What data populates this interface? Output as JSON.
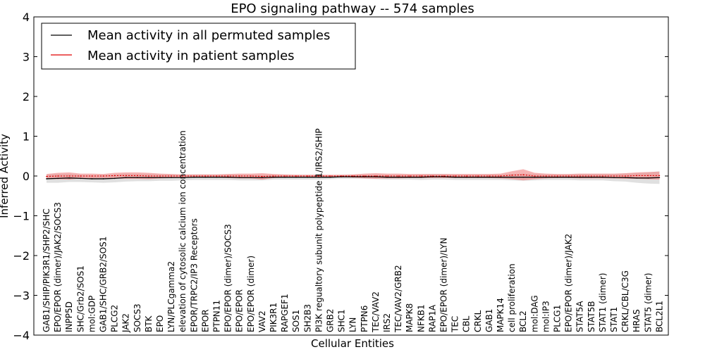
{
  "chart_data": {
    "type": "line",
    "title": "EPO signaling pathway -- 574 samples",
    "xlabel": "Cellular Entities",
    "ylabel": "Inferred Activity",
    "ylim": [
      -4,
      4
    ],
    "yticks": [
      "−4",
      "−3",
      "−2",
      "−1",
      "0",
      "1",
      "2",
      "3",
      "4"
    ],
    "grid": false,
    "legend_position": "top-left",
    "categories": [
      "GAB1/SHIP/PIK3R1/SHP2/SHC",
      "EPO/EPOR (dimer)/JAK2/SOCS3",
      "INPP5D",
      "SHC/Grb2/SOS1",
      "mol:GDP",
      "GAB1/SHC/GRB2/SOS1",
      "PLCG2",
      "JAK2",
      "SOCS3",
      "BTK",
      "EPO",
      "LYN/PLCgamma2",
      "elevation of cytosolic calcium ion concentration",
      "EPOR/TRPC2/IP3 Receptors",
      "EPOR",
      "PTPN11",
      "EPO/EPOR (dimer)/SOCS3",
      "EPO/EPOR",
      "EPO/EPOR (dimer)",
      "VAV2",
      "PIK3R1",
      "RAPGEF1",
      "SOS1",
      "SH2B3",
      "PI3K regualtory subunit polypeptide 1/IRS2/SHIP",
      "GRB2",
      "SHC1",
      "LYN",
      "PTPN6",
      "TEC/VAV2",
      "IRS2",
      "TEC/VAV2/GRB2",
      "MAPK8",
      "NFKB1",
      "RAP1A",
      "EPO/EPOR (dimer)/LYN",
      "TEC",
      "CBL",
      "CRKL",
      "GAB1",
      "MAPK14",
      "cell proliferation",
      "BCL2",
      "mol:DAG",
      "mol:IP3",
      "PLCG1",
      "EPO/EPOR (dimer)/JAK2",
      "STAT5A",
      "STAT5B",
      "STAT1 (dimer)",
      "STAT1",
      "CRKL/CBL/C3G",
      "HRAS",
      "STAT5 (dimer)",
      "BCL2L1"
    ],
    "series": [
      {
        "name": "Mean activity in all permuted samples",
        "color": "#000000",
        "band_color": "#bbbbbb",
        "values": [
          -0.07,
          -0.06,
          -0.05,
          -0.06,
          -0.07,
          -0.07,
          -0.06,
          -0.04,
          -0.04,
          -0.04,
          -0.04,
          -0.04,
          -0.04,
          -0.03,
          -0.03,
          -0.03,
          -0.03,
          -0.04,
          -0.04,
          -0.04,
          -0.03,
          -0.03,
          -0.03,
          -0.03,
          -0.03,
          -0.03,
          -0.02,
          -0.02,
          -0.02,
          -0.02,
          -0.03,
          -0.03,
          -0.03,
          -0.03,
          -0.02,
          -0.02,
          -0.03,
          -0.03,
          -0.03,
          -0.03,
          -0.03,
          -0.03,
          -0.03,
          -0.03,
          -0.03,
          -0.03,
          -0.03,
          -0.03,
          -0.03,
          -0.03,
          -0.04,
          -0.04,
          -0.05,
          -0.05,
          -0.04
        ],
        "band": [
          0.1,
          0.11,
          0.1,
          0.09,
          0.09,
          0.1,
          0.1,
          0.1,
          0.09,
          0.09,
          0.08,
          0.08,
          0.07,
          0.07,
          0.07,
          0.07,
          0.07,
          0.07,
          0.07,
          0.07,
          0.06,
          0.06,
          0.06,
          0.06,
          0.06,
          0.05,
          0.05,
          0.05,
          0.05,
          0.06,
          0.06,
          0.06,
          0.06,
          0.07,
          0.07,
          0.07,
          0.07,
          0.07,
          0.07,
          0.07,
          0.07,
          0.08,
          0.09,
          0.08,
          0.07,
          0.07,
          0.07,
          0.08,
          0.08,
          0.08,
          0.09,
          0.1,
          0.12,
          0.14,
          0.16
        ]
      },
      {
        "name": "Mean activity in patient samples",
        "color": "#e00000",
        "band_color": "#f08080",
        "values": [
          -0.01,
          0.0,
          0.0,
          0.0,
          0.0,
          0.0,
          0.01,
          0.01,
          0.01,
          0.0,
          0.0,
          0.0,
          0.0,
          0.0,
          0.0,
          0.0,
          0.0,
          0.0,
          0.0,
          -0.01,
          0.0,
          0.0,
          0.0,
          0.0,
          0.0,
          0.0,
          0.0,
          0.0,
          0.0,
          0.0,
          0.0,
          0.0,
          0.0,
          0.0,
          0.0,
          0.0,
          0.0,
          0.0,
          0.0,
          0.0,
          0.0,
          0.02,
          0.03,
          0.0,
          0.0,
          0.0,
          0.0,
          0.0,
          0.0,
          0.0,
          0.0,
          0.0,
          0.01,
          0.01,
          0.01
        ],
        "band": [
          0.06,
          0.08,
          0.09,
          0.06,
          0.06,
          0.05,
          0.07,
          0.08,
          0.08,
          0.08,
          0.06,
          0.05,
          0.04,
          0.04,
          0.04,
          0.04,
          0.05,
          0.06,
          0.06,
          0.08,
          0.05,
          0.04,
          0.03,
          0.03,
          0.03,
          0.03,
          0.03,
          0.04,
          0.06,
          0.07,
          0.06,
          0.06,
          0.05,
          0.05,
          0.05,
          0.05,
          0.05,
          0.05,
          0.05,
          0.05,
          0.06,
          0.1,
          0.14,
          0.08,
          0.06,
          0.05,
          0.05,
          0.06,
          0.06,
          0.06,
          0.06,
          0.07,
          0.08,
          0.09,
          0.1
        ]
      }
    ]
  }
}
